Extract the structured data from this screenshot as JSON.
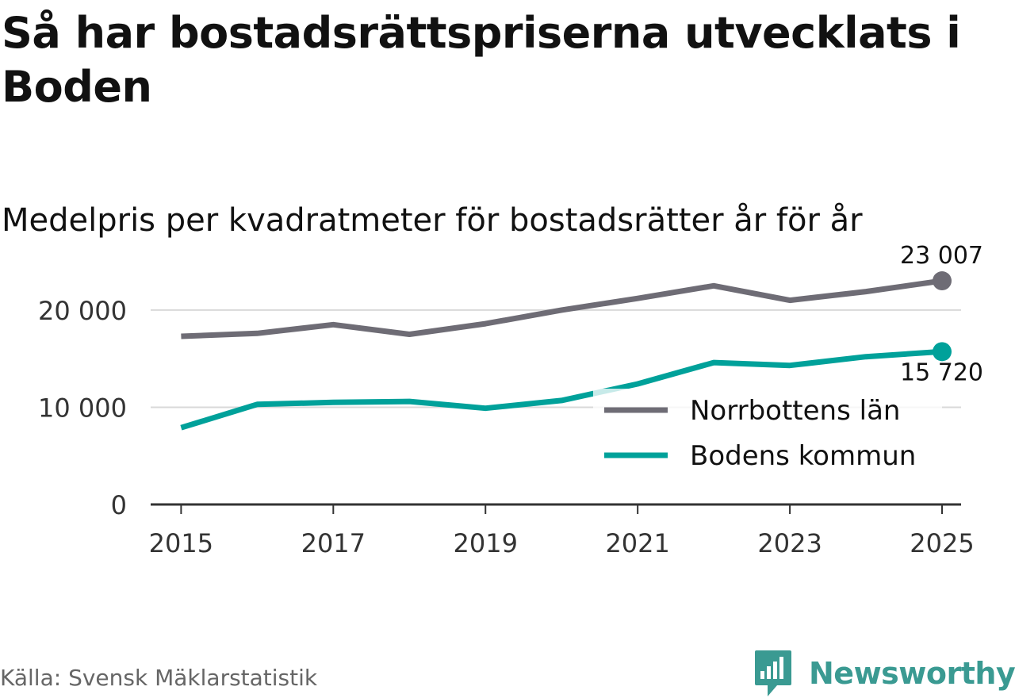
{
  "title": "Så har bostadsrättspriserna utvecklats i Boden",
  "subtitle": "Medelpris per kvadratmeter för bostadsrätter år för år",
  "source": "Källa: Svensk Mäklarstatistik",
  "brand": "Newsworthy",
  "colors": {
    "norrbotten": "#6e6c75",
    "boden": "#00a19a",
    "grid": "#d9d9d9",
    "axis": "#333333",
    "brand": "#3a9a92"
  },
  "chart_data": {
    "type": "line",
    "title": "Så har bostadsrättspriserna utvecklats i Boden",
    "subtitle": "Medelpris per kvadratmeter för bostadsrätter år för år",
    "x": [
      2015,
      2016,
      2017,
      2018,
      2019,
      2020,
      2021,
      2022,
      2023,
      2024,
      2025
    ],
    "xticks": [
      2015,
      2017,
      2019,
      2021,
      2023,
      2025
    ],
    "xtick_labels": [
      "2015",
      "2017",
      "2019",
      "2021",
      "2023",
      "2025"
    ],
    "yticks": [
      0,
      10000,
      20000
    ],
    "ytick_labels": [
      "0",
      "10 000",
      "20 000"
    ],
    "xlim": [
      2014.6,
      2025.25
    ],
    "ylim": [
      0,
      23500
    ],
    "grid": true,
    "legend_position": "bottom-right",
    "series": [
      {
        "name": "Norrbottens län",
        "values": [
          17300,
          17600,
          18500,
          17500,
          18600,
          20000,
          21200,
          22500,
          21000,
          21900,
          23007
        ],
        "end_label": "23 007"
      },
      {
        "name": "Bodens kommun",
        "values": [
          7900,
          10300,
          10500,
          10600,
          9900,
          10700,
          12400,
          14600,
          14300,
          15200,
          15720
        ],
        "end_label": "15 720"
      }
    ]
  }
}
